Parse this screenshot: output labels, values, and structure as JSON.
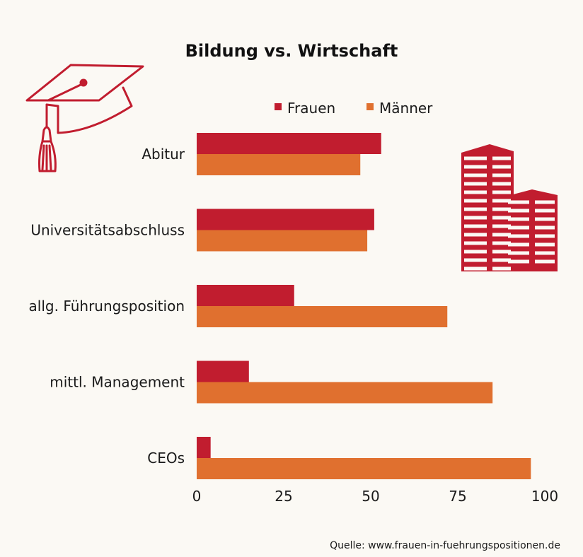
{
  "colors": {
    "frauen": "#c11d2f",
    "maenner": "#e0702f",
    "background": "#fbf9f4",
    "icon": "#c11d2f"
  },
  "icons": {
    "left": "graduation-cap-icon",
    "right": "office-buildings-icon"
  },
  "source": "Quelle: www.frauen-in-fuehrungspositionen.de",
  "chart_data": {
    "type": "bar",
    "orientation": "horizontal",
    "title": "Bildung vs. Wirtschaft",
    "categories": [
      "Abitur",
      "Universitätsabschluss",
      "allg. Führungsposition",
      "mittl. Management",
      "CEOs"
    ],
    "series": [
      {
        "name": "Frauen",
        "values": [
          53,
          51,
          28,
          15,
          4
        ]
      },
      {
        "name": "Männer",
        "values": [
          47,
          49,
          72,
          85,
          96
        ]
      }
    ],
    "xlim": [
      0,
      100
    ],
    "xticks": [
      "0",
      "25",
      "50",
      "75",
      "100"
    ],
    "legend_position": "top",
    "grid": false
  }
}
